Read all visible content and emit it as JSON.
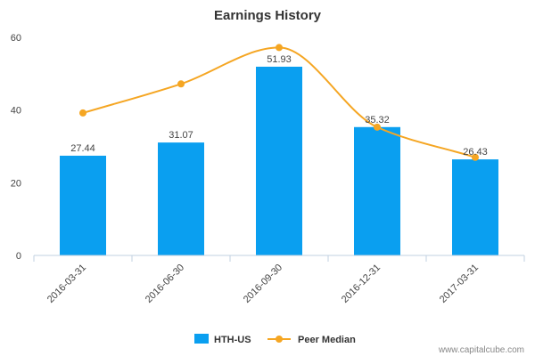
{
  "chart_data": {
    "type": "bar",
    "title": "Earnings History",
    "xlabel": "",
    "ylabel": "",
    "ylim": [
      0,
      60
    ],
    "yticks": [
      0,
      20,
      40,
      60
    ],
    "categories": [
      "2016-03-31",
      "2016-06-30",
      "2016-09-30",
      "2016-12-31",
      "2017-03-31"
    ],
    "series": [
      {
        "name": "HTH-US",
        "kind": "bar",
        "color": "#0a9ff0",
        "values": [
          27.44,
          31.07,
          51.93,
          35.32,
          26.43
        ],
        "value_labels": [
          "27.44",
          "31.07",
          "51.93",
          "35.32",
          "26.43"
        ]
      },
      {
        "name": "Peer Median",
        "kind": "line",
        "color": "#f5a623",
        "values": [
          39.2,
          47.2,
          57.2,
          35.3,
          27.0
        ]
      }
    ],
    "legend_position": "bottom-center"
  },
  "watermark": "www.capitalcube.com"
}
